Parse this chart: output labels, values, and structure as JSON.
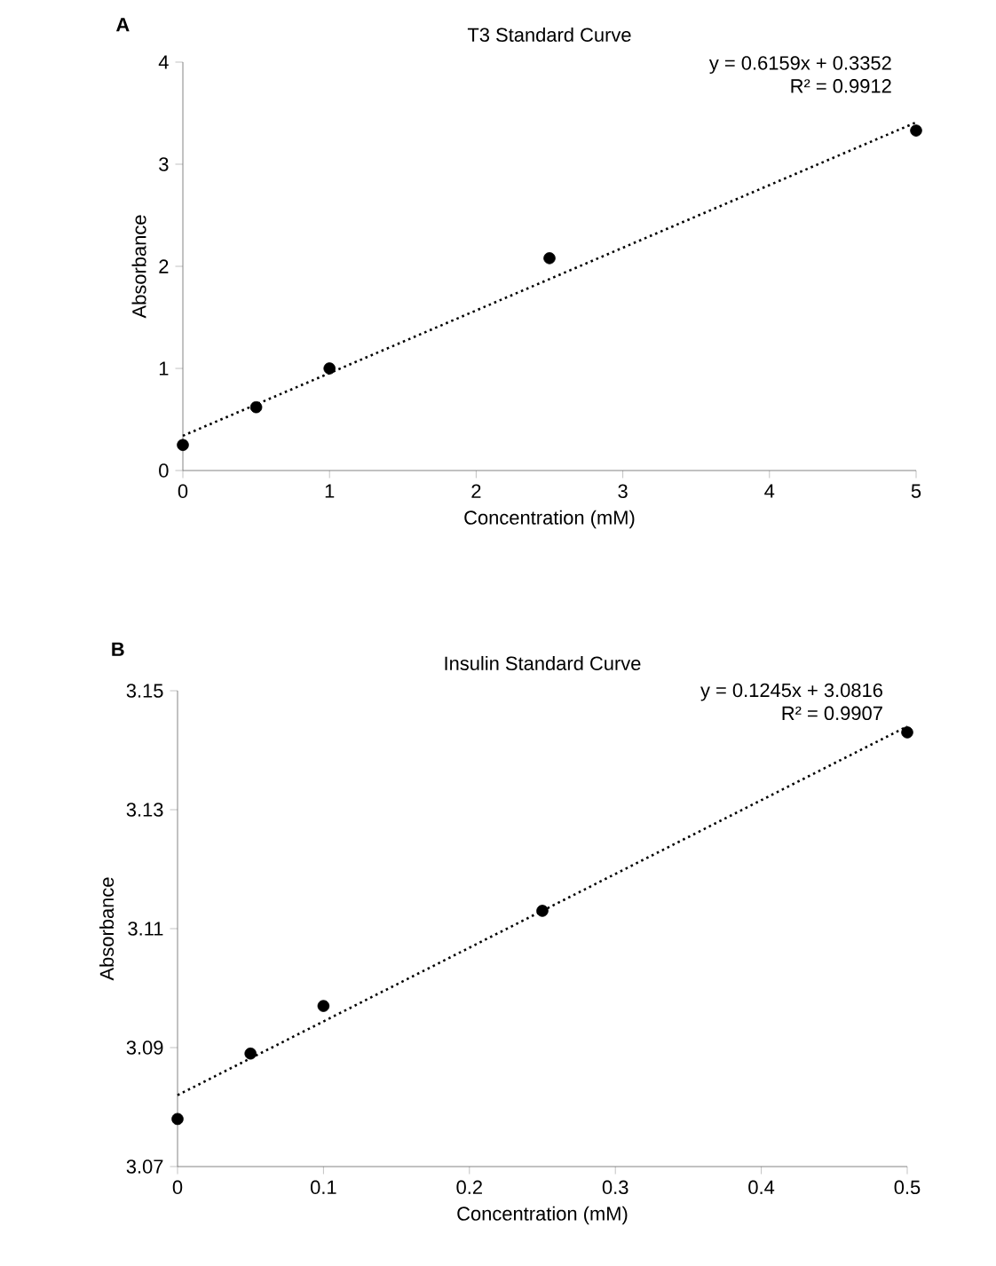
{
  "chart_data": [
    {
      "type": "scatter",
      "title": "T3 Standard Curve",
      "xlabel": "Concentration (mM)",
      "ylabel": "Absorbance",
      "annotations": [
        "A",
        "y = 0.6159x + 0.3352",
        "R² = 0.9912"
      ],
      "xlim": [
        0,
        5
      ],
      "xticks": [
        0,
        1,
        2,
        3,
        4,
        5
      ],
      "ylim": [
        0,
        4
      ],
      "yticks": [
        0,
        1,
        2,
        3,
        4
      ],
      "series": [
        {
          "x": [
            0,
            0.5,
            1,
            2.5,
            5
          ],
          "values": [
            0.25,
            0.62,
            1.0,
            2.08,
            3.33
          ],
          "color": "#000000",
          "marker": "circle"
        },
        {
          "type": "line",
          "x": [
            0,
            5
          ],
          "values": [
            0.34,
            3.41
          ],
          "color": "#000000",
          "line_style": "dotted",
          "marker": "none"
        }
      ]
    },
    {
      "type": "scatter",
      "title": "Insulin Standard Curve",
      "xlabel": "Concentration (mM)",
      "ylabel": "Absorbance",
      "annotations": [
        "B",
        "y = 0.1245x + 3.0816",
        "R² = 0.9907"
      ],
      "xlim": [
        0,
        0.5
      ],
      "xticks": [
        0,
        0.1,
        0.2,
        0.3,
        0.4,
        0.5
      ],
      "ylim": [
        3.07,
        3.15
      ],
      "yticks": [
        3.07,
        3.09,
        3.11,
        3.13,
        3.15
      ],
      "series": [
        {
          "x": [
            0,
            0.05,
            0.1,
            0.25,
            0.5
          ],
          "values": [
            3.078,
            3.089,
            3.097,
            3.113,
            3.143
          ],
          "color": "#000000",
          "marker": "circle"
        },
        {
          "type": "line",
          "x": [
            0,
            0.5
          ],
          "values": [
            3.082,
            3.144
          ],
          "color": "#000000",
          "line_style": "dotted",
          "marker": "none"
        }
      ]
    }
  ]
}
